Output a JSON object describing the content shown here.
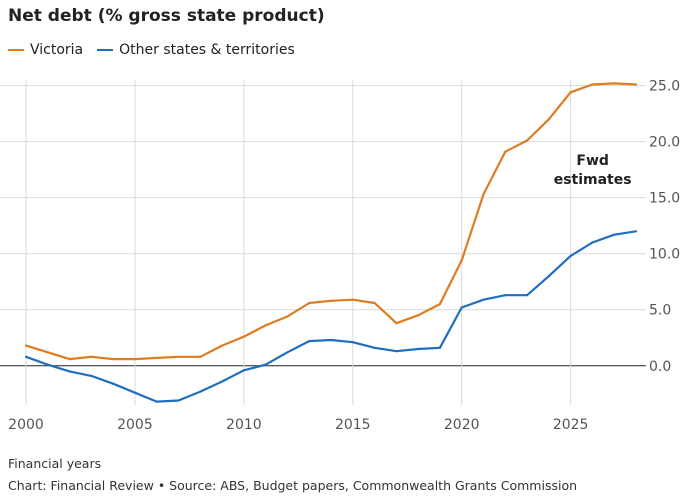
{
  "chart_data": {
    "type": "line",
    "title": "Net debt (% gross state product)",
    "xlabel": "Financial years",
    "ylabel": "",
    "xlim": [
      2000,
      2028
    ],
    "ylim": [
      -3.5,
      25.5
    ],
    "x_ticks": [
      "2000",
      "2005",
      "2010",
      "2015",
      "2020",
      "2025"
    ],
    "y_ticks": [
      "0.0",
      "5.0",
      "10.0",
      "15.0",
      "20.0",
      "25.0"
    ],
    "x": [
      2000,
      2001,
      2002,
      2003,
      2004,
      2005,
      2006,
      2007,
      2008,
      2009,
      2010,
      2011,
      2012,
      2013,
      2014,
      2015,
      2016,
      2017,
      2018,
      2019,
      2020,
      2021,
      2022,
      2023,
      2024,
      2025,
      2026,
      2027,
      2028
    ],
    "series": [
      {
        "name": "Victoria",
        "color": "#e07b1f",
        "values": [
          1.8,
          1.2,
          0.6,
          0.8,
          0.6,
          0.6,
          0.7,
          0.8,
          0.8,
          1.8,
          2.6,
          3.6,
          4.4,
          5.6,
          5.8,
          5.9,
          5.6,
          3.8,
          4.5,
          5.5,
          9.4,
          15.3,
          19.1,
          20.1,
          22.0,
          24.4,
          25.1,
          25.2,
          25.1
        ]
      },
      {
        "name": "Other states & territories",
        "color": "#1f6fc0",
        "values": [
          0.8,
          0.1,
          -0.5,
          -0.9,
          -1.6,
          -2.4,
          -3.2,
          -3.1,
          -2.3,
          -1.4,
          -0.4,
          0.1,
          1.2,
          2.2,
          2.3,
          2.1,
          1.6,
          1.3,
          1.5,
          1.6,
          5.2,
          5.9,
          6.3,
          6.3,
          8.0,
          9.8,
          11.0,
          11.7,
          12.0
        ]
      }
    ],
    "annotation": {
      "text_line1": "Fwd",
      "text_line2": "estimates",
      "x": 2025
    },
    "grid": true,
    "legend_position": "top-left"
  },
  "footer": {
    "axis_note": "Financial years",
    "source": "Chart: Financial Review • Source: ABS, Budget papers, Commonwealth Grants Commission"
  }
}
